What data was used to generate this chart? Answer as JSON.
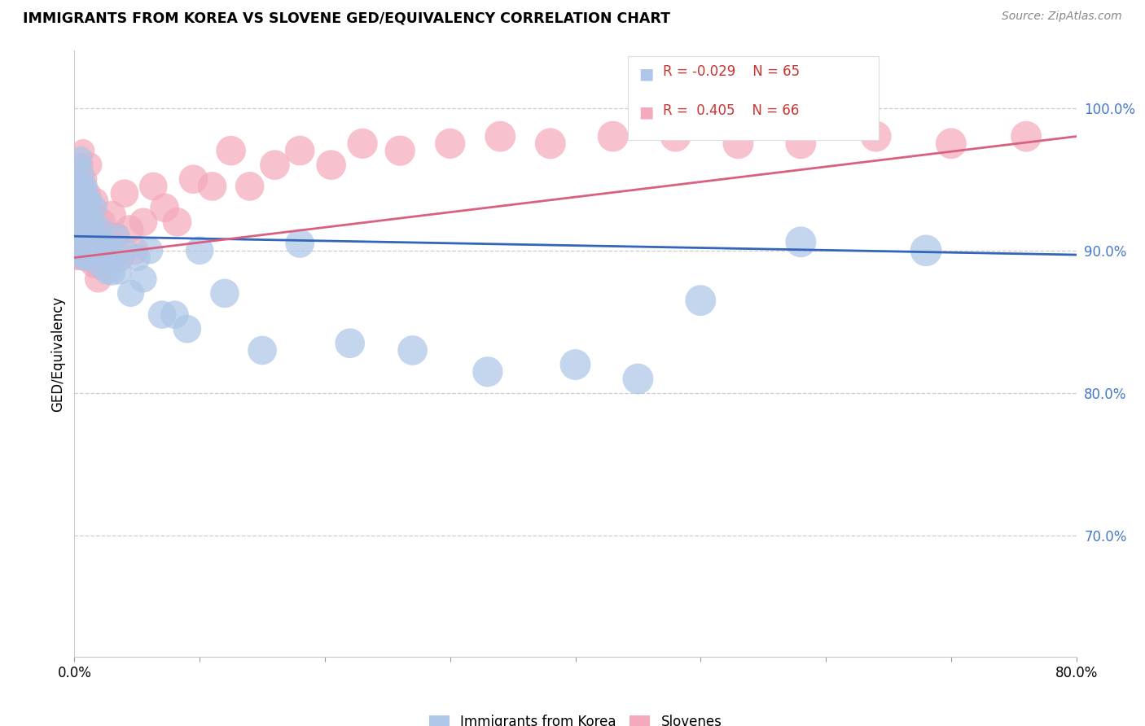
{
  "title": "IMMIGRANTS FROM KOREA VS SLOVENE GED/EQUIVALENCY CORRELATION CHART",
  "source": "Source: ZipAtlas.com",
  "ylabel": "GED/Equivalency",
  "xlim": [
    0.0,
    0.8
  ],
  "ylim": [
    0.615,
    1.04
  ],
  "legend_r_korea": "-0.029",
  "legend_n_korea": "65",
  "legend_r_slovene": "0.405",
  "legend_n_slovene": "66",
  "korea_color": "#aec6e8",
  "slovene_color": "#f4aabc",
  "korea_line_color": "#3366bb",
  "slovene_line_color": "#d96080",
  "ytick_vals": [
    0.7,
    0.8,
    0.9,
    1.0
  ],
  "ytick_labels": [
    "70.0%",
    "80.0%",
    "90.0%",
    "100.0%"
  ],
  "korea_x": [
    0.002,
    0.003,
    0.003,
    0.004,
    0.004,
    0.005,
    0.005,
    0.005,
    0.006,
    0.006,
    0.006,
    0.007,
    0.007,
    0.007,
    0.008,
    0.008,
    0.009,
    0.009,
    0.009,
    0.01,
    0.01,
    0.01,
    0.011,
    0.011,
    0.012,
    0.012,
    0.013,
    0.013,
    0.014,
    0.015,
    0.015,
    0.016,
    0.017,
    0.018,
    0.019,
    0.02,
    0.021,
    0.022,
    0.024,
    0.026,
    0.028,
    0.03,
    0.032,
    0.034,
    0.036,
    0.04,
    0.045,
    0.05,
    0.055,
    0.06,
    0.07,
    0.08,
    0.09,
    0.1,
    0.12,
    0.15,
    0.18,
    0.22,
    0.27,
    0.33,
    0.4,
    0.45,
    0.5,
    0.58,
    0.68
  ],
  "korea_y": [
    0.92,
    0.935,
    0.95,
    0.945,
    0.96,
    0.9,
    0.93,
    0.965,
    0.91,
    0.94,
    0.955,
    0.895,
    0.925,
    0.945,
    0.905,
    0.935,
    0.9,
    0.92,
    0.945,
    0.895,
    0.915,
    0.94,
    0.905,
    0.93,
    0.895,
    0.925,
    0.905,
    0.935,
    0.91,
    0.9,
    0.92,
    0.93,
    0.895,
    0.91,
    0.9,
    0.89,
    0.915,
    0.905,
    0.895,
    0.885,
    0.9,
    0.885,
    0.895,
    0.91,
    0.885,
    0.9,
    0.87,
    0.895,
    0.88,
    0.9,
    0.855,
    0.855,
    0.845,
    0.9,
    0.87,
    0.83,
    0.905,
    0.835,
    0.83,
    0.815,
    0.82,
    0.81,
    0.865,
    0.906,
    0.9
  ],
  "korea_s": [
    35,
    35,
    38,
    38,
    35,
    55,
    38,
    35,
    42,
    38,
    38,
    42,
    38,
    35,
    42,
    35,
    42,
    38,
    38,
    42,
    38,
    35,
    42,
    38,
    42,
    38,
    42,
    35,
    42,
    42,
    38,
    42,
    38,
    42,
    42,
    42,
    42,
    42,
    42,
    42,
    42,
    48,
    42,
    42,
    42,
    48,
    48,
    48,
    48,
    48,
    52,
    52,
    52,
    52,
    55,
    55,
    55,
    58,
    58,
    60,
    62,
    62,
    62,
    62,
    65
  ],
  "slovene_x": [
    0.001,
    0.002,
    0.002,
    0.003,
    0.003,
    0.004,
    0.004,
    0.005,
    0.005,
    0.006,
    0.006,
    0.006,
    0.007,
    0.007,
    0.008,
    0.008,
    0.009,
    0.009,
    0.01,
    0.01,
    0.011,
    0.011,
    0.012,
    0.012,
    0.013,
    0.014,
    0.015,
    0.016,
    0.017,
    0.018,
    0.019,
    0.02,
    0.021,
    0.022,
    0.024,
    0.026,
    0.028,
    0.03,
    0.033,
    0.036,
    0.04,
    0.044,
    0.048,
    0.055,
    0.063,
    0.072,
    0.082,
    0.095,
    0.11,
    0.125,
    0.14,
    0.16,
    0.18,
    0.205,
    0.23,
    0.26,
    0.3,
    0.34,
    0.38,
    0.43,
    0.48,
    0.53,
    0.58,
    0.64,
    0.7,
    0.76
  ],
  "slovene_y": [
    0.895,
    0.94,
    0.905,
    0.93,
    0.895,
    0.96,
    0.905,
    0.94,
    0.9,
    0.96,
    0.925,
    0.895,
    0.97,
    0.905,
    0.935,
    0.9,
    0.95,
    0.895,
    0.92,
    0.895,
    0.94,
    0.9,
    0.96,
    0.915,
    0.93,
    0.9,
    0.91,
    0.89,
    0.935,
    0.915,
    0.88,
    0.89,
    0.9,
    0.92,
    0.9,
    0.895,
    0.905,
    0.925,
    0.91,
    0.895,
    0.94,
    0.915,
    0.9,
    0.92,
    0.945,
    0.93,
    0.92,
    0.95,
    0.945,
    0.97,
    0.945,
    0.96,
    0.97,
    0.96,
    0.975,
    0.97,
    0.975,
    0.98,
    0.975,
    0.98,
    0.98,
    0.975,
    0.975,
    0.98,
    0.975,
    0.98
  ],
  "slovene_s": [
    35,
    35,
    38,
    35,
    42,
    35,
    42,
    35,
    42,
    35,
    48,
    42,
    35,
    42,
    35,
    42,
    35,
    48,
    42,
    52,
    42,
    48,
    42,
    48,
    42,
    48,
    42,
    48,
    42,
    48,
    48,
    55,
    48,
    48,
    48,
    48,
    52,
    52,
    52,
    52,
    52,
    52,
    52,
    52,
    52,
    55,
    55,
    55,
    55,
    58,
    55,
    58,
    58,
    58,
    60,
    60,
    60,
    62,
    62,
    62,
    62,
    62,
    62,
    62,
    62,
    62
  ],
  "korea_line_x": [
    0.0,
    0.8
  ],
  "korea_line_y": [
    0.91,
    0.897
  ],
  "slovene_line_x": [
    0.0,
    0.8
  ],
  "slovene_line_y": [
    0.895,
    0.98
  ]
}
